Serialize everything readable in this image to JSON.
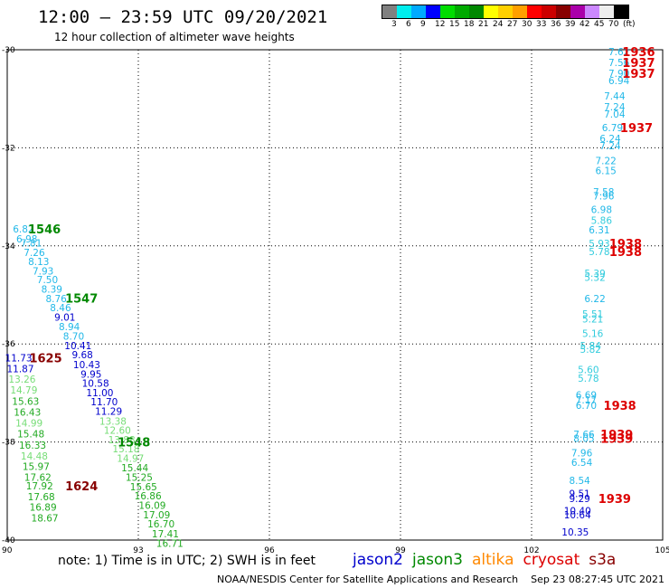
{
  "header": {
    "title": "12:00 — 23:59 UTC 09/20/2021",
    "subtitle": "12 hour collection of altimeter wave heights"
  },
  "legend": {
    "colors": [
      "#808080",
      "#00eeee",
      "#00aaff",
      "#0000ff",
      "#00dd00",
      "#00aa00",
      "#008800",
      "#ffff00",
      "#ffd000",
      "#ffa000",
      "#ff0000",
      "#cc0000",
      "#880000",
      "#aa00aa",
      "#cc88ff",
      "#eeeeee",
      "#000000"
    ],
    "labels": [
      "3",
      "6",
      "9",
      "12",
      "15",
      "18",
      "21",
      "24",
      "27",
      "30",
      "33",
      "36",
      "39",
      "42",
      "45",
      "70",
      "(ft)"
    ]
  },
  "note": "note: 1) Time is in UTC; 2) SWH is in feet",
  "satellites": [
    {
      "name": "jason2",
      "color": "#0000cc"
    },
    {
      "name": "jason3",
      "color": "#008800"
    },
    {
      "name": "altika",
      "color": "#ff8800"
    },
    {
      "name": "cryosat",
      "color": "#dd0000"
    },
    {
      "name": "s3a",
      "color": "#880000"
    }
  ],
  "footer": "NOAA/NESDIS Center for Satellite Applications and Research    Sep 23 08:27:45 UTC 2021",
  "chart_data": {
    "type": "scatter",
    "x_ticks": [
      "90",
      "93",
      "96",
      "99",
      "102",
      "105"
    ],
    "y_ticks": [
      "-30",
      "-32",
      "-34",
      "-36",
      "-38",
      "-40"
    ],
    "xlim": [
      90,
      105
    ],
    "ylim": [
      -40,
      -30
    ],
    "grid": true,
    "colors": {
      "cyan": "#22b8e8",
      "lightcyan": "#33ccdd",
      "blue": "#0000cc",
      "lightgreen": "#77dd77",
      "green": "#22aa22",
      "darkgreen": "#008800",
      "red": "#dd0000",
      "maroon": "#880000"
    },
    "points": [
      {
        "x": 90.37,
        "y": -33.65,
        "v": "6.82",
        "c": "cyan"
      },
      {
        "x": 90.45,
        "y": -33.86,
        "v": "6.98",
        "c": "cyan"
      },
      {
        "x": 90.55,
        "y": -33.94,
        "v": "7.81",
        "c": "cyan"
      },
      {
        "x": 90.62,
        "y": -34.13,
        "v": "7.26",
        "c": "cyan"
      },
      {
        "x": 90.72,
        "y": -34.32,
        "v": "8.13",
        "c": "cyan"
      },
      {
        "x": 90.82,
        "y": -34.51,
        "v": "7.93",
        "c": "cyan"
      },
      {
        "x": 90.92,
        "y": -34.69,
        "v": "7.50",
        "c": "cyan"
      },
      {
        "x": 91.02,
        "y": -34.88,
        "v": "8.39",
        "c": "cyan"
      },
      {
        "x": 91.12,
        "y": -35.07,
        "v": "8.76",
        "c": "cyan"
      },
      {
        "x": 91.22,
        "y": -35.26,
        "v": "8.46",
        "c": "cyan"
      },
      {
        "x": 91.32,
        "y": -35.45,
        "v": "9.01",
        "c": "blue"
      },
      {
        "x": 91.42,
        "y": -35.65,
        "v": "8.94",
        "c": "cyan"
      },
      {
        "x": 91.52,
        "y": -35.84,
        "v": "8.70",
        "c": "cyan"
      },
      {
        "x": 91.62,
        "y": -36.03,
        "v": "10.41",
        "c": "blue"
      },
      {
        "x": 91.72,
        "y": -36.22,
        "v": "9.68",
        "c": "blue"
      },
      {
        "x": 91.82,
        "y": -36.42,
        "v": "10.43",
        "c": "blue"
      },
      {
        "x": 91.92,
        "y": -36.61,
        "v": "9.95",
        "c": "blue"
      },
      {
        "x": 92.02,
        "y": -36.8,
        "v": "10.58",
        "c": "blue"
      },
      {
        "x": 92.12,
        "y": -36.99,
        "v": "11.00",
        "c": "blue"
      },
      {
        "x": 92.22,
        "y": -37.18,
        "v": "11.70",
        "c": "blue"
      },
      {
        "x": 92.32,
        "y": -37.37,
        "v": "11.29",
        "c": "blue"
      },
      {
        "x": 92.42,
        "y": -37.57,
        "v": "13.38",
        "c": "lightgreen"
      },
      {
        "x": 92.52,
        "y": -37.76,
        "v": "12.60",
        "c": "lightgreen"
      },
      {
        "x": 92.62,
        "y": -37.95,
        "v": "13.88",
        "c": "lightgreen"
      },
      {
        "x": 92.72,
        "y": -38.14,
        "v": "15.18",
        "c": "lightgreen"
      },
      {
        "x": 92.82,
        "y": -38.33,
        "v": "14.97",
        "c": "lightgreen"
      },
      {
        "x": 92.92,
        "y": -38.52,
        "v": "15.44",
        "c": "green"
      },
      {
        "x": 93.02,
        "y": -38.72,
        "v": "15.25",
        "c": "green"
      },
      {
        "x": 93.12,
        "y": -38.91,
        "v": "15.65",
        "c": "green"
      },
      {
        "x": 93.22,
        "y": -39.1,
        "v": "16.86",
        "c": "green"
      },
      {
        "x": 93.32,
        "y": -39.29,
        "v": "16.09",
        "c": "green"
      },
      {
        "x": 93.42,
        "y": -39.48,
        "v": "17.09",
        "c": "green"
      },
      {
        "x": 93.52,
        "y": -39.67,
        "v": "16.70",
        "c": "green"
      },
      {
        "x": 93.62,
        "y": -39.87,
        "v": "17.41",
        "c": "green"
      },
      {
        "x": 93.72,
        "y": -40.06,
        "v": "16.71",
        "c": "green"
      },
      {
        "x": 90.26,
        "y": -36.28,
        "v": "11.73",
        "c": "blue"
      },
      {
        "x": 90.3,
        "y": -36.5,
        "v": "11.87",
        "c": "blue"
      },
      {
        "x": 90.34,
        "y": -36.72,
        "v": "13.26",
        "c": "lightgreen"
      },
      {
        "x": 90.38,
        "y": -36.94,
        "v": "14.79",
        "c": "lightgreen"
      },
      {
        "x": 90.42,
        "y": -37.17,
        "v": "15.63",
        "c": "green"
      },
      {
        "x": 90.46,
        "y": -37.39,
        "v": "16.43",
        "c": "green"
      },
      {
        "x": 90.5,
        "y": -37.61,
        "v": "14.99",
        "c": "lightgreen"
      },
      {
        "x": 90.54,
        "y": -37.83,
        "v": "15.48",
        "c": "green"
      },
      {
        "x": 90.58,
        "y": -38.06,
        "v": "16.33",
        "c": "green"
      },
      {
        "x": 90.62,
        "y": -38.28,
        "v": "14.48",
        "c": "lightgreen"
      },
      {
        "x": 90.66,
        "y": -38.5,
        "v": "15.97",
        "c": "green"
      },
      {
        "x": 90.7,
        "y": -38.72,
        "v": "17.62",
        "c": "green"
      },
      {
        "x": 90.74,
        "y": -38.89,
        "v": "17.92",
        "c": "green"
      },
      {
        "x": 90.78,
        "y": -39.11,
        "v": "17.68",
        "c": "green"
      },
      {
        "x": 90.82,
        "y": -39.33,
        "v": "16.89",
        "c": "green"
      },
      {
        "x": 90.86,
        "y": -39.55,
        "v": "18.67",
        "c": "green"
      },
      {
        "x": 104.0,
        "y": -30.04,
        "v": "7.62",
        "c": "cyan"
      },
      {
        "x": 104.0,
        "y": -30.26,
        "v": "7.56",
        "c": "cyan"
      },
      {
        "x": 104.0,
        "y": -30.48,
        "v": "7.90",
        "c": "cyan"
      },
      {
        "x": 104.0,
        "y": -30.63,
        "v": "6.94",
        "c": "cyan"
      },
      {
        "x": 103.9,
        "y": -30.94,
        "v": "7.44",
        "c": "cyan"
      },
      {
        "x": 103.9,
        "y": -31.16,
        "v": "7.24",
        "c": "cyan"
      },
      {
        "x": 103.9,
        "y": -31.31,
        "v": "7.04",
        "c": "cyan"
      },
      {
        "x": 103.85,
        "y": -31.59,
        "v": "6.79",
        "c": "cyan"
      },
      {
        "x": 103.8,
        "y": -31.81,
        "v": "6.24",
        "c": "cyan"
      },
      {
        "x": 103.8,
        "y": -31.96,
        "v": "7.24",
        "c": "cyan"
      },
      {
        "x": 103.7,
        "y": -32.26,
        "v": "7.22",
        "c": "cyan"
      },
      {
        "x": 103.7,
        "y": -32.46,
        "v": "6.15",
        "c": "cyan"
      },
      {
        "x": 103.65,
        "y": -32.9,
        "v": "7.58",
        "c": "cyan"
      },
      {
        "x": 103.65,
        "y": -32.98,
        "v": "7.96",
        "c": "cyan"
      },
      {
        "x": 103.6,
        "y": -33.26,
        "v": "6.98",
        "c": "cyan"
      },
      {
        "x": 103.6,
        "y": -33.48,
        "v": "5.86",
        "c": "lightcyan"
      },
      {
        "x": 103.55,
        "y": -33.67,
        "v": "6.31",
        "c": "cyan"
      },
      {
        "x": 103.55,
        "y": -33.95,
        "v": "5.93",
        "c": "lightcyan"
      },
      {
        "x": 103.55,
        "y": -34.11,
        "v": "5.78",
        "c": "lightcyan"
      },
      {
        "x": 103.45,
        "y": -34.56,
        "v": "5.39",
        "c": "lightcyan"
      },
      {
        "x": 103.45,
        "y": -34.64,
        "v": "5.32",
        "c": "lightcyan"
      },
      {
        "x": 103.45,
        "y": -35.07,
        "v": "6.22",
        "c": "cyan"
      },
      {
        "x": 103.4,
        "y": -35.39,
        "v": "5.51",
        "c": "lightcyan"
      },
      {
        "x": 103.4,
        "y": -35.49,
        "v": "5.21",
        "c": "lightcyan"
      },
      {
        "x": 103.4,
        "y": -35.78,
        "v": "5.16",
        "c": "lightcyan"
      },
      {
        "x": 103.35,
        "y": -36.03,
        "v": "5.84",
        "c": "lightcyan"
      },
      {
        "x": 103.35,
        "y": -36.11,
        "v": "5.82",
        "c": "lightcyan"
      },
      {
        "x": 103.3,
        "y": -36.52,
        "v": "5.60",
        "c": "lightcyan"
      },
      {
        "x": 103.3,
        "y": -36.7,
        "v": "5.78",
        "c": "lightcyan"
      },
      {
        "x": 103.25,
        "y": -37.04,
        "v": "6.69",
        "c": "cyan"
      },
      {
        "x": 103.25,
        "y": -37.14,
        "v": "7.17",
        "c": "cyan"
      },
      {
        "x": 103.25,
        "y": -37.25,
        "v": "6.70",
        "c": "cyan"
      },
      {
        "x": 103.2,
        "y": -37.84,
        "v": "7.66",
        "c": "cyan"
      },
      {
        "x": 103.2,
        "y": -37.92,
        "v": "8.05",
        "c": "cyan"
      },
      {
        "x": 103.15,
        "y": -38.22,
        "v": "7.96",
        "c": "cyan"
      },
      {
        "x": 103.15,
        "y": -38.41,
        "v": "6.54",
        "c": "cyan"
      },
      {
        "x": 103.1,
        "y": -38.78,
        "v": "8.54",
        "c": "cyan"
      },
      {
        "x": 103.1,
        "y": -39.05,
        "v": "9.51",
        "c": "blue"
      },
      {
        "x": 103.1,
        "y": -39.15,
        "v": "9.29",
        "c": "blue"
      },
      {
        "x": 103.05,
        "y": -39.4,
        "v": "10.40",
        "c": "blue"
      },
      {
        "x": 103.05,
        "y": -39.48,
        "v": "10.64",
        "c": "blue"
      },
      {
        "x": 103.0,
        "y": -39.83,
        "v": "10.35",
        "c": "blue"
      }
    ],
    "annotations": [
      {
        "x": 90.85,
        "y": -33.65,
        "v": "1546",
        "c": "darkgreen"
      },
      {
        "x": 91.7,
        "y": -35.06,
        "v": "1547",
        "c": "darkgreen"
      },
      {
        "x": 92.9,
        "y": -38.0,
        "v": "1548",
        "c": "darkgreen"
      },
      {
        "x": 90.88,
        "y": -36.28,
        "v": "1625",
        "c": "maroon"
      },
      {
        "x": 91.7,
        "y": -38.89,
        "v": "1624",
        "c": "maroon"
      },
      {
        "x": 104.45,
        "y": -30.04,
        "v": "1936",
        "c": "red"
      },
      {
        "x": 104.45,
        "y": -30.26,
        "v": "1937",
        "c": "red"
      },
      {
        "x": 104.45,
        "y": -30.48,
        "v": "1937",
        "c": "red"
      },
      {
        "x": 104.4,
        "y": -31.59,
        "v": "1937",
        "c": "red"
      },
      {
        "x": 104.15,
        "y": -33.95,
        "v": "1938",
        "c": "red"
      },
      {
        "x": 104.15,
        "y": -34.11,
        "v": "1938",
        "c": "red"
      },
      {
        "x": 104.02,
        "y": -37.25,
        "v": "1938",
        "c": "red"
      },
      {
        "x": 103.95,
        "y": -37.84,
        "v": "1939",
        "c": "red"
      },
      {
        "x": 103.95,
        "y": -37.92,
        "v": "1939",
        "c": "red"
      },
      {
        "x": 103.9,
        "y": -39.15,
        "v": "1939",
        "c": "red"
      }
    ]
  }
}
